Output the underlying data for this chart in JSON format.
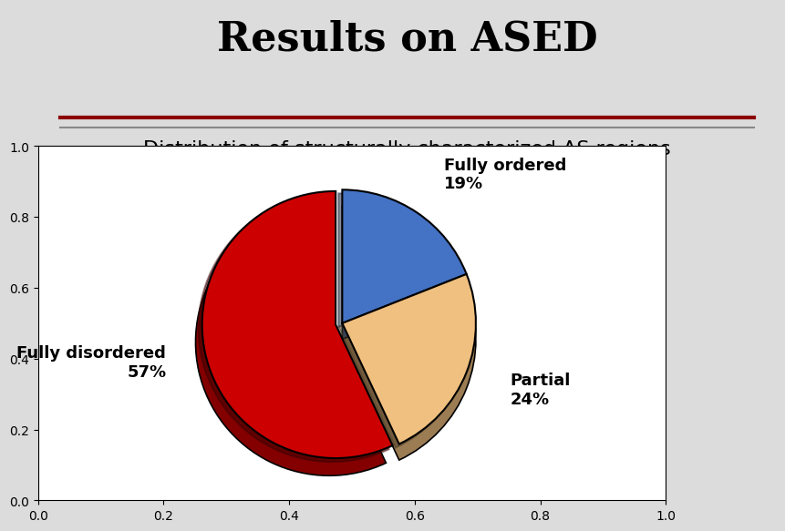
{
  "title": "Results on ASED",
  "subtitle": "Distribution of structurally characterized AS regions",
  "slices": [
    19,
    24,
    57
  ],
  "labels": [
    "Fully ordered\n19%",
    "Partial\n24%",
    "Fully disordered\n57%"
  ],
  "colors": [
    "#4472C4",
    "#F0C080",
    "#CC0000"
  ],
  "explode": [
    0.0,
    0.0,
    0.05
  ],
  "background_color": "#DCDCDC",
  "title_fontsize": 32,
  "subtitle_fontsize": 16,
  "label_fontsize": 13,
  "separator_line_color": "#8B0000",
  "separator_line_color2": "#888888"
}
